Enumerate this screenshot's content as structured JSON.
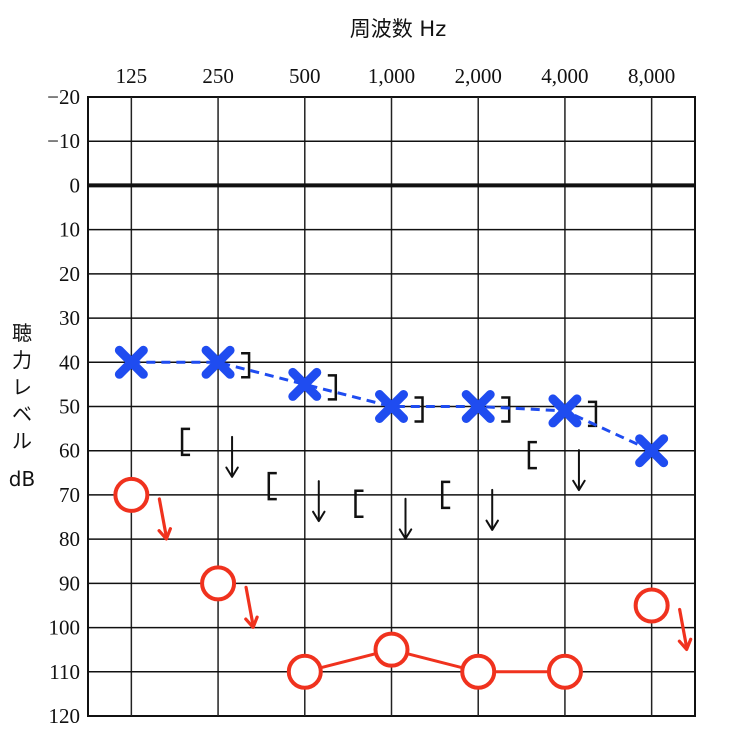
{
  "chart_data": {
    "type": "line",
    "title": "周波数 Hz",
    "ylabel_chars": [
      "聴",
      "力",
      "レ",
      "ベ",
      "ル"
    ],
    "ylabel_unit": "dB",
    "x": [
      "125",
      "250",
      "500",
      "1,000",
      "2,000",
      "4,000",
      "8,000"
    ],
    "y_ticks": [
      "−20",
      "−10",
      "0",
      "10",
      "20",
      "30",
      "40",
      "50",
      "60",
      "70",
      "80",
      "90",
      "100",
      "110",
      "120"
    ],
    "ylim": [
      -20,
      120
    ],
    "y_inverted": true,
    "grid": true,
    "colors": {
      "left_ear": "#1f4cf0",
      "right_ear": "#f0321e",
      "bone": "#111111"
    },
    "series": [
      {
        "symbol": "X",
        "line": "dashed",
        "color": "#1f4cf0",
        "values": [
          40,
          40,
          45,
          50,
          50,
          51,
          60
        ]
      },
      {
        "symbol": "O",
        "line": "solid-partial",
        "color": "#f0321e",
        "values": [
          70,
          90,
          110,
          105,
          110,
          110,
          95
        ],
        "no_response": [
          true,
          true,
          false,
          false,
          false,
          false,
          true
        ],
        "connected": [
          false,
          false,
          true,
          true,
          true,
          true,
          false
        ]
      }
    ],
    "bone_left_symbol": "]",
    "bone_left_values": [
      null,
      40,
      45,
      50,
      50,
      51,
      null
    ],
    "bone_right_symbol": "[",
    "bone_right_values": [
      null,
      58,
      68,
      72,
      70,
      61,
      null
    ],
    "bone_right_no_response": [
      null,
      true,
      true,
      true,
      true,
      true,
      null
    ]
  }
}
